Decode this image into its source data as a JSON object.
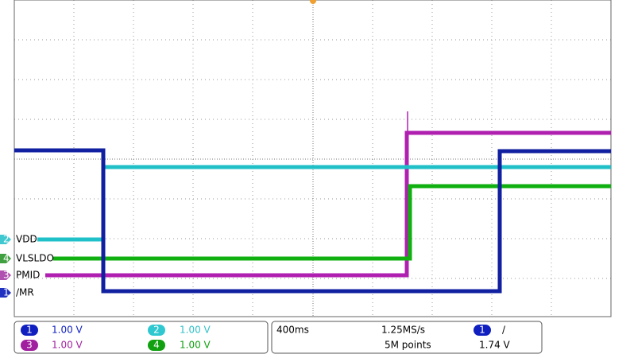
{
  "channels": [
    {
      "label": "VDD",
      "number": "2"
    },
    {
      "label": "VLSLDO",
      "number": "4"
    },
    {
      "label": "PMID",
      "number": "3"
    },
    {
      "label": "/MR",
      "number": "1"
    }
  ],
  "readout": {
    "ch1": {
      "number": "1",
      "scale": "1.00 V"
    },
    "ch2": {
      "number": "2",
      "scale": "1.00 V"
    },
    "ch3": {
      "number": "3",
      "scale": "1.00 V"
    },
    "ch4": {
      "number": "4",
      "scale": "1.00 V"
    },
    "timebase": "400ms",
    "sample_rate": "1.25MS/s",
    "record_length": "5M points",
    "trigger_channel": "1",
    "trigger_slope": "/",
    "trigger_level": "1.74 V"
  }
}
